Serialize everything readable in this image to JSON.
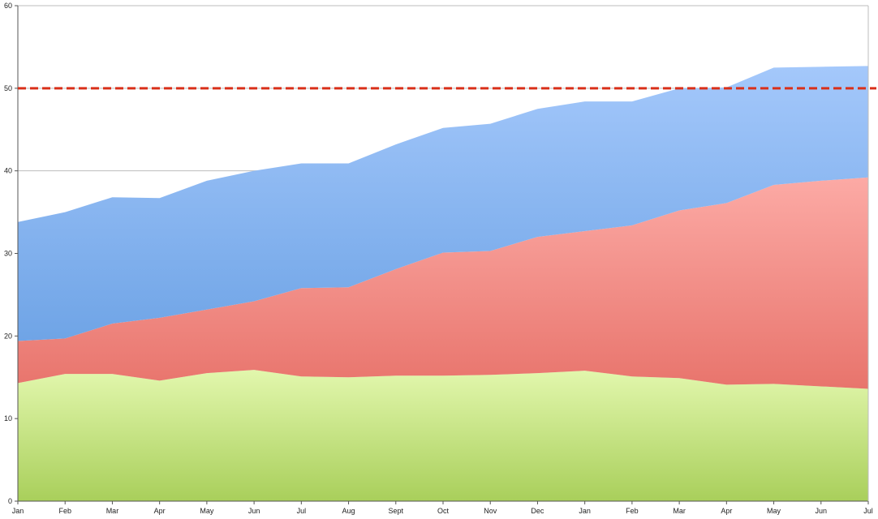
{
  "chart_data": {
    "type": "area",
    "stacked": true,
    "title": "",
    "xlabel": "",
    "ylabel": "",
    "categories": [
      "Jan",
      "Feb",
      "Mar",
      "Apr",
      "May",
      "Jun",
      "Jul",
      "Aug",
      "Sept",
      "Oct",
      "Nov",
      "Dec",
      "Jan",
      "Feb",
      "Mar",
      "Apr",
      "May",
      "Jun",
      "Jul"
    ],
    "ylim": [
      0,
      60
    ],
    "yticks": [
      0,
      10,
      20,
      30,
      40,
      50,
      60
    ],
    "grid": "horizontal",
    "legend": "none",
    "series": [
      {
        "color_top": "#e2f7ad",
        "color_bottom": "#a9cf5b",
        "values": [
          14.3,
          15.4,
          15.4,
          14.6,
          15.5,
          15.9,
          15.1,
          15.0,
          15.2,
          15.2,
          15.3,
          15.5,
          15.8,
          15.1,
          14.9,
          14.1,
          14.2,
          13.9,
          13.6
        ]
      },
      {
        "color_top": "#fcaaa5",
        "color_bottom": "#e8746c",
        "values": [
          5.1,
          4.3,
          6.1,
          7.6,
          7.7,
          8.3,
          10.7,
          10.9,
          12.9,
          14.9,
          15.0,
          16.5,
          16.9,
          18.3,
          20.3,
          22.0,
          24.1,
          24.9,
          25.6
        ]
      },
      {
        "color_top": "#a4c8fb",
        "color_bottom": "#6fa4e6",
        "values": [
          14.4,
          15.3,
          15.3,
          14.5,
          15.6,
          15.8,
          15.1,
          15.0,
          15.1,
          15.1,
          15.4,
          15.5,
          15.7,
          15.0,
          14.8,
          14.0,
          14.2,
          13.8,
          13.5
        ]
      }
    ],
    "reference_line": {
      "value": 50,
      "color": "#d9301a",
      "style": "dashed"
    }
  }
}
